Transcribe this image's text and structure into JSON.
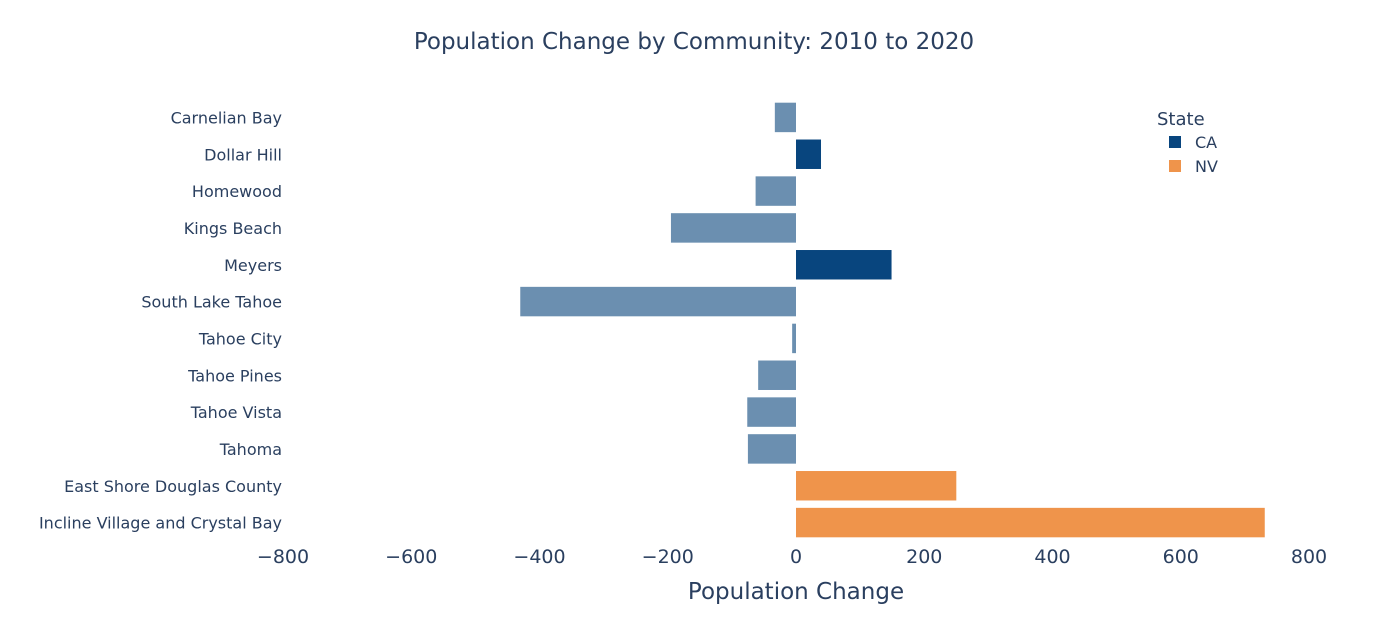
{
  "chart_data": {
    "type": "bar",
    "orientation": "horizontal",
    "title": "Population Change by Community: 2010 to 2020",
    "xlabel": "Population Change",
    "ylabel": "",
    "xlim": [
      -800,
      800
    ],
    "xticks": [
      -800,
      -600,
      -400,
      -200,
      0,
      200,
      400,
      600,
      800
    ],
    "xtick_labels": [
      "−800",
      "−600",
      "−400",
      "−200",
      "0",
      "200",
      "400",
      "600",
      "800"
    ],
    "grid": false,
    "legend": {
      "title": "State",
      "placement": "top-right",
      "entries": [
        {
          "label": "CA",
          "color": "#08457e"
        },
        {
          "label": "NV",
          "color": "#ef944b"
        }
      ]
    },
    "colors": {
      "ca_increase": "#08457e",
      "ca_decrease": "#6b8fb0",
      "nv": "#ef944b",
      "text": "#2a3f5f"
    },
    "categories": [
      "Carnelian Bay",
      "Dollar Hill",
      "Homewood",
      "Kings Beach",
      "Meyers",
      "South Lake Tahoe",
      "Tahoe City",
      "Tahoe Pines",
      "Tahoe Vista",
      "Tahoma",
      "East Shore Douglas County",
      "Incline Village and Crystal Bay"
    ],
    "values": [
      -33,
      39,
      -63,
      -195,
      149,
      -430,
      -6,
      -59,
      -76,
      -75,
      250,
      731
    ],
    "states": [
      "CA",
      "CA",
      "CA",
      "CA",
      "CA",
      "CA",
      "CA",
      "CA",
      "CA",
      "CA",
      "NV",
      "NV"
    ]
  }
}
